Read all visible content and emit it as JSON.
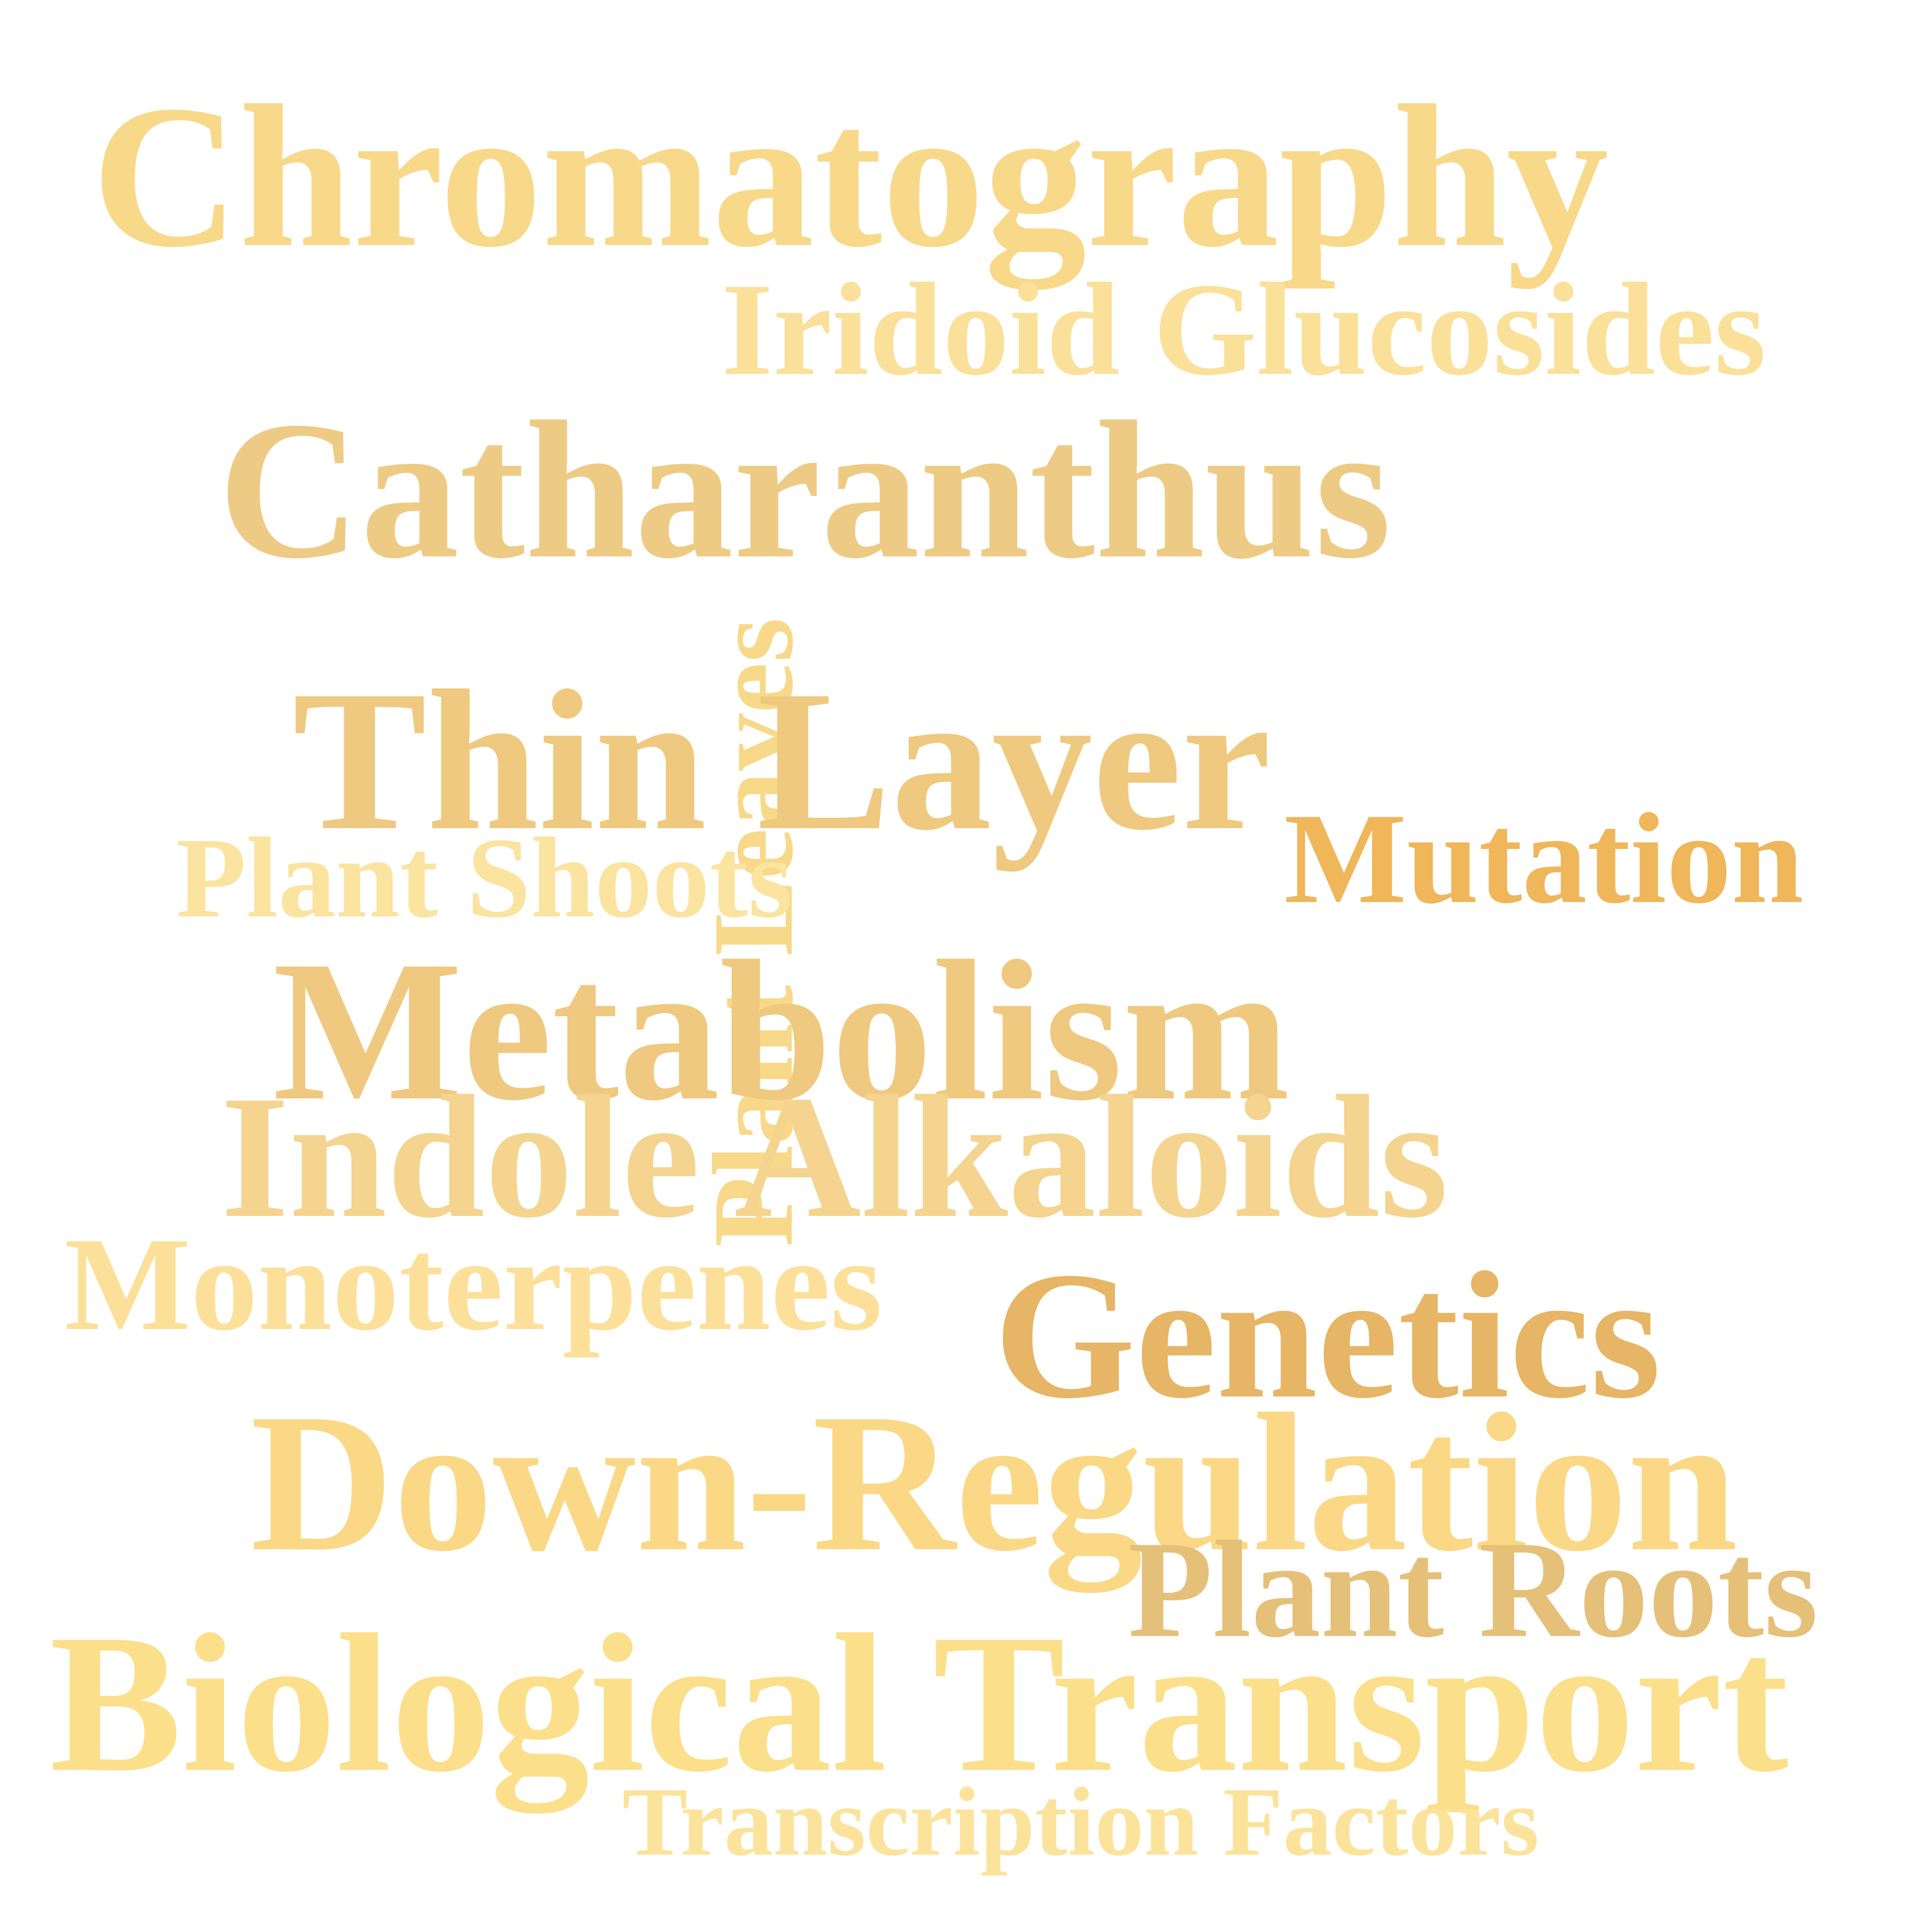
{
  "word_cloud": {
    "background": "#ffffff",
    "words": [
      {
        "id": "chromatography",
        "text": "Chromatography",
        "color": "#f8d98a",
        "orientation": "horizontal"
      },
      {
        "id": "iridoid_glucosides",
        "text": "Iridoid Glucosides",
        "color": "#fbe09a",
        "orientation": "horizontal"
      },
      {
        "id": "catharanthus",
        "text": "Catharanthus",
        "color": "#eecb85",
        "orientation": "horizontal"
      },
      {
        "id": "plant_leaves",
        "text": "Plant Leaves",
        "color": "#f8d98a",
        "orientation": "vertical"
      },
      {
        "id": "thin_layer",
        "text": "Thin Layer",
        "color": "#efc97f",
        "orientation": "horizontal"
      },
      {
        "id": "mutation",
        "text": "Mutation",
        "color": "#efb65a",
        "orientation": "horizontal"
      },
      {
        "id": "plant_shoots",
        "text": "Plant Shoots",
        "color": "#fbe3a0",
        "orientation": "horizontal"
      },
      {
        "id": "metabolism",
        "text": "Metabolism",
        "color": "#efc97f",
        "orientation": "horizontal"
      },
      {
        "id": "indole_alkaloids",
        "text": "Indole Alkaloids",
        "color": "#f4d48f",
        "orientation": "horizontal"
      },
      {
        "id": "monoterpenes",
        "text": "Monoterpenes",
        "color": "#fce09a",
        "orientation": "horizontal"
      },
      {
        "id": "genetics",
        "text": "Genetics",
        "color": "#e6b565",
        "orientation": "horizontal"
      },
      {
        "id": "down_regulation",
        "text": "Down-Regulation",
        "color": "#fad885",
        "orientation": "horizontal"
      },
      {
        "id": "plant_roots",
        "text": "Plant Roots",
        "color": "#e5c078",
        "orientation": "horizontal"
      },
      {
        "id": "biological_transport",
        "text": "Biological Transport",
        "color": "#fbdf8a",
        "orientation": "horizontal"
      },
      {
        "id": "transcription_factors",
        "text": "Transcription Factors",
        "color": "#fce39c",
        "orientation": "horizontal"
      }
    ]
  }
}
